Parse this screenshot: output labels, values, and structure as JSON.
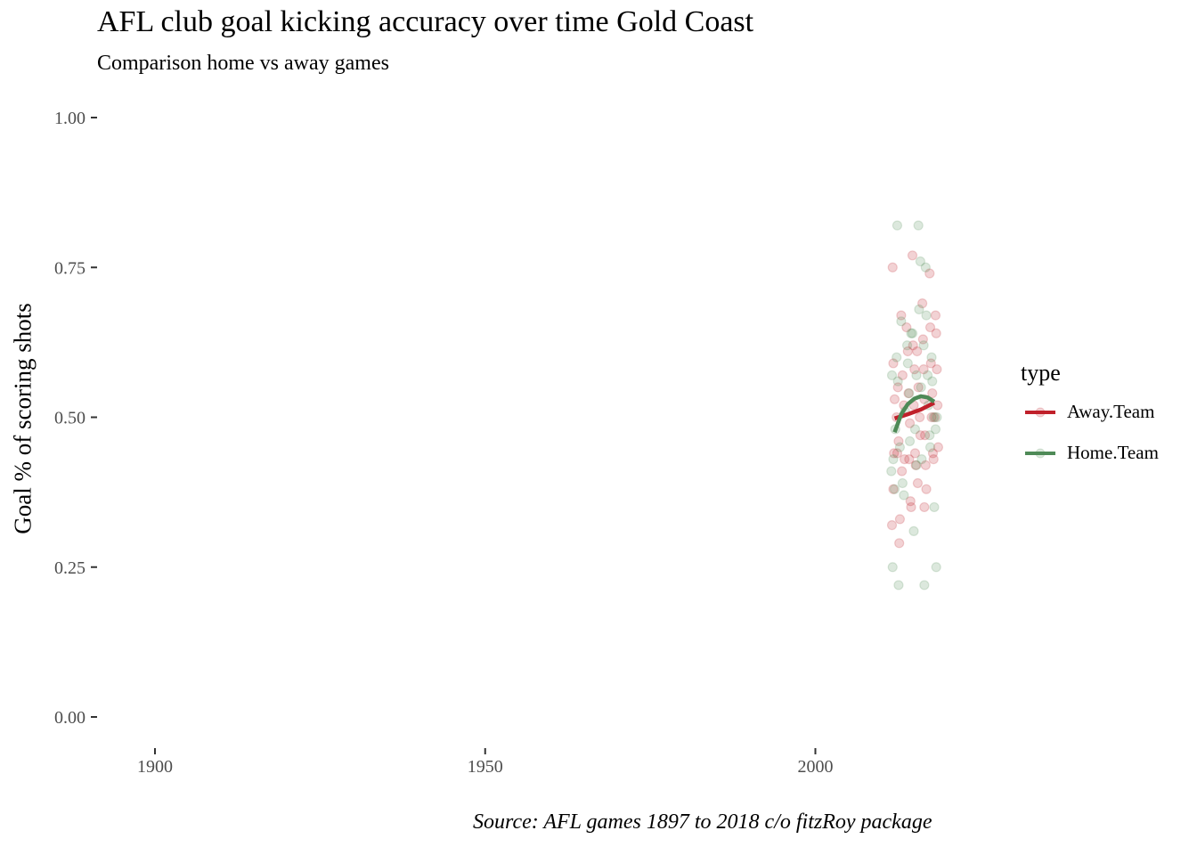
{
  "chart_data": {
    "type": "scatter",
    "title": "AFL club goal kicking accuracy over time Gold Coast",
    "subtitle": "Comparison home vs away games",
    "xlabel": "",
    "ylabel": "Goal % of scoring shots",
    "caption": "Source: AFL games 1897 to 2018 c/o fitzRoy package",
    "xlim": [
      1891,
      2043
    ],
    "ylim": [
      -0.05,
      1.05
    ],
    "x_ticks": [
      1900,
      1950,
      2000
    ],
    "y_ticks": [
      0.0,
      0.25,
      0.5,
      0.75,
      1.0
    ],
    "y_tick_labels": [
      "0.00",
      "0.25",
      "0.50",
      "0.75",
      "1.00"
    ],
    "grid": false,
    "legend": {
      "title": "type",
      "position": "right"
    },
    "series": [
      {
        "name": "Away.Team",
        "color": "#c0202a",
        "points": [
          [
            2011.7,
            0.75
          ],
          [
            2011.6,
            0.32
          ],
          [
            2011.8,
            0.59
          ],
          [
            2012.0,
            0.53
          ],
          [
            2011.9,
            0.44
          ],
          [
            2011.8,
            0.38
          ],
          [
            2012.3,
            0.5
          ],
          [
            2012.5,
            0.55
          ],
          [
            2012.6,
            0.46
          ],
          [
            2012.4,
            0.44
          ],
          [
            2012.7,
            0.29
          ],
          [
            2012.8,
            0.33
          ],
          [
            2013.0,
            0.67
          ],
          [
            2013.2,
            0.57
          ],
          [
            2013.4,
            0.52
          ],
          [
            2013.1,
            0.41
          ],
          [
            2013.5,
            0.43
          ],
          [
            2013.8,
            0.65
          ],
          [
            2014.0,
            0.61
          ],
          [
            2014.1,
            0.54
          ],
          [
            2014.3,
            0.49
          ],
          [
            2014.2,
            0.43
          ],
          [
            2014.4,
            0.36
          ],
          [
            2014.5,
            0.35
          ],
          [
            2014.7,
            0.77
          ],
          [
            2014.8,
            0.62
          ],
          [
            2015.0,
            0.58
          ],
          [
            2014.9,
            0.52
          ],
          [
            2015.1,
            0.44
          ],
          [
            2015.2,
            0.42
          ],
          [
            2015.4,
            0.61
          ],
          [
            2015.6,
            0.55
          ],
          [
            2015.8,
            0.5
          ],
          [
            2015.5,
            0.39
          ],
          [
            2015.9,
            0.47
          ],
          [
            2016.2,
            0.69
          ],
          [
            2016.3,
            0.63
          ],
          [
            2016.4,
            0.58
          ],
          [
            2016.5,
            0.53
          ],
          [
            2016.6,
            0.47
          ],
          [
            2016.7,
            0.42
          ],
          [
            2016.8,
            0.38
          ],
          [
            2016.5,
            0.35
          ],
          [
            2017.3,
            0.74
          ],
          [
            2017.4,
            0.65
          ],
          [
            2017.5,
            0.59
          ],
          [
            2017.7,
            0.54
          ],
          [
            2017.6,
            0.5
          ],
          [
            2017.8,
            0.44
          ],
          [
            2017.9,
            0.43
          ],
          [
            2018.2,
            0.67
          ],
          [
            2018.3,
            0.64
          ],
          [
            2018.4,
            0.58
          ],
          [
            2018.5,
            0.52
          ],
          [
            2018.6,
            0.45
          ],
          [
            2018.1,
            0.5
          ]
        ],
        "trend": [
          [
            2012,
            0.498
          ],
          [
            2014,
            0.505
          ],
          [
            2016,
            0.513
          ],
          [
            2018,
            0.524
          ]
        ]
      },
      {
        "name": "Home.Team",
        "color": "#4e8a57",
        "points": [
          [
            2011.5,
            0.41
          ],
          [
            2011.6,
            0.57
          ],
          [
            2011.7,
            0.25
          ],
          [
            2011.8,
            0.43
          ],
          [
            2012.0,
            0.38
          ],
          [
            2012.1,
            0.48
          ],
          [
            2012.4,
            0.82
          ],
          [
            2012.3,
            0.6
          ],
          [
            2012.5,
            0.56
          ],
          [
            2012.6,
            0.22
          ],
          [
            2012.8,
            0.45
          ],
          [
            2013.0,
            0.66
          ],
          [
            2013.2,
            0.39
          ],
          [
            2013.4,
            0.37
          ],
          [
            2013.6,
            0.51
          ],
          [
            2013.9,
            0.62
          ],
          [
            2014.0,
            0.59
          ],
          [
            2014.2,
            0.54
          ],
          [
            2014.3,
            0.46
          ],
          [
            2014.7,
            0.64
          ],
          [
            2014.9,
            0.31
          ],
          [
            2015.1,
            0.48
          ],
          [
            2015.3,
            0.57
          ],
          [
            2015.6,
            0.82
          ],
          [
            2015.7,
            0.68
          ],
          [
            2015.9,
            0.76
          ],
          [
            2016.0,
            0.55
          ],
          [
            2016.1,
            0.43
          ],
          [
            2016.4,
            0.62
          ],
          [
            2016.5,
            0.22
          ],
          [
            2016.7,
            0.75
          ],
          [
            2016.8,
            0.67
          ],
          [
            2017.0,
            0.57
          ],
          [
            2017.1,
            0.52
          ],
          [
            2017.3,
            0.47
          ],
          [
            2017.4,
            0.45
          ],
          [
            2017.6,
            0.6
          ],
          [
            2017.7,
            0.56
          ],
          [
            2017.9,
            0.5
          ],
          [
            2018.0,
            0.35
          ],
          [
            2018.2,
            0.48
          ],
          [
            2018.3,
            0.25
          ],
          [
            2018.4,
            0.5
          ],
          [
            2015.3,
            0.42
          ],
          [
            2014.5,
            0.64
          ]
        ],
        "trend": [
          [
            2012,
            0.475
          ],
          [
            2013,
            0.505
          ],
          [
            2014,
            0.522
          ],
          [
            2015,
            0.531
          ],
          [
            2016,
            0.535
          ],
          [
            2017,
            0.533
          ],
          [
            2018,
            0.526
          ]
        ]
      }
    ]
  }
}
